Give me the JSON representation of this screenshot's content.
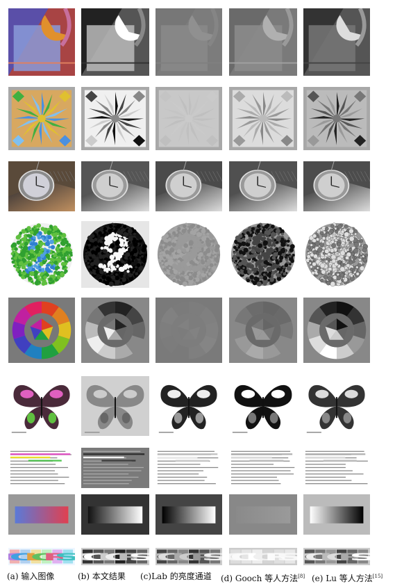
{
  "captions": [
    {
      "label": "(a) 输入图像",
      "ref": ""
    },
    {
      "label": "(b) 本文结果",
      "ref": ""
    },
    {
      "label": "(c)Lab 的亮度通道",
      "ref": ""
    },
    {
      "label": "(d) Gooch 等人方法",
      "ref": "[8]"
    },
    {
      "label": "(e) Lu 等人方法",
      "ref": "[15]"
    }
  ],
  "rows": [
    {
      "name": "abstract-shapes"
    },
    {
      "name": "kaleidoscope-pattern"
    },
    {
      "name": "pocket-watch"
    },
    {
      "name": "ishihara-plate"
    },
    {
      "name": "color-wheel"
    },
    {
      "name": "butterfly"
    },
    {
      "name": "highlighted-text"
    },
    {
      "name": "color-gradient"
    },
    {
      "name": "colors-word",
      "word": [
        "C",
        "O",
        "L",
        "O",
        "R",
        "S"
      ]
    }
  ],
  "columns": [
    "input",
    "proposed",
    "lab-luminance",
    "gooch",
    "lu"
  ],
  "palette": {
    "abstract": [
      "#4a5ab0",
      "#c86a9a",
      "#d88a30",
      "#b04040",
      "#9090d0"
    ],
    "text_highlights": [
      "#e040c0",
      "#f0e020",
      "#40c040"
    ],
    "gradient_input": [
      "#5a7ad8",
      "#e04050"
    ],
    "colors_input": [
      "#f0b0b0",
      "#b0d0f0",
      "#f0e0a0",
      "#c0f0c0",
      "#e0b0f0",
      "#a0e0f0"
    ]
  }
}
